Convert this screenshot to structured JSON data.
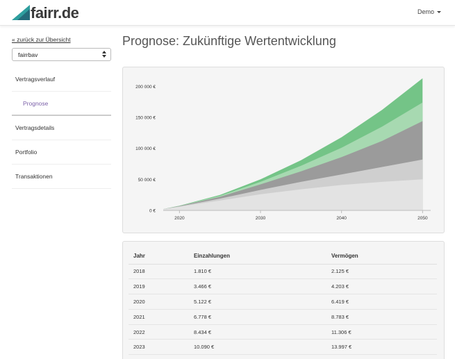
{
  "header": {
    "logo_text": "fairr.de",
    "user_label": "Demo"
  },
  "sidebar": {
    "back_link": "« zurück zur Übersicht",
    "selected_contract": "fairrbav",
    "items": [
      {
        "label": "Vertragsverlauf"
      },
      {
        "label": "Prognose"
      },
      {
        "label": "Vertragsdetails"
      },
      {
        "label": "Portfolio"
      },
      {
        "label": "Transaktionen"
      }
    ]
  },
  "main": {
    "title": "Prognose: Zukünftige Wertentwicklung"
  },
  "chart_data": {
    "type": "area",
    "x": [
      2018,
      2020,
      2025,
      2030,
      2035,
      2040,
      2045,
      2050
    ],
    "xticks": [
      "2020",
      "2030",
      "2040",
      "2050"
    ],
    "yticks": [
      "0 €",
      "50 000 €",
      "100 000 €",
      "150 000 €",
      "200 000 €"
    ],
    "ylim": [
      0,
      215000
    ],
    "xlim": [
      2018,
      2051
    ],
    "series": [
      {
        "values": [
          2125,
          6000,
          16000,
          26000,
          34000,
          41000,
          46000,
          50000
        ],
        "color": "#e3e3e3"
      },
      {
        "values": [
          2125,
          6500,
          19000,
          33000,
          46000,
          58000,
          70000,
          82000
        ],
        "color": "#cfcfcf"
      },
      {
        "values": [
          2125,
          7000,
          22000,
          42000,
          63000,
          86000,
          112000,
          144000
        ],
        "color": "#9b9b9b"
      },
      {
        "values": [
          2125,
          7300,
          23500,
          46000,
          72000,
          101000,
          135000,
          174000
        ],
        "color": "#a7d9b1"
      },
      {
        "values": [
          2125,
          7600,
          25000,
          50000,
          81000,
          118000,
          162000,
          213000
        ],
        "color": "#74c487"
      }
    ],
    "grid": false
  },
  "table": {
    "headers": [
      "Jahr",
      "Einzahlungen",
      "Vermögen"
    ],
    "rows": [
      [
        "2018",
        "1.810 €",
        "2.125 €"
      ],
      [
        "2019",
        "3.466 €",
        "4.203 €"
      ],
      [
        "2020",
        "5.122 €",
        "6.419 €"
      ],
      [
        "2021",
        "6.778 €",
        "8.783 €"
      ],
      [
        "2022",
        "8.434 €",
        "11.306 €"
      ],
      [
        "2023",
        "10.090 €",
        "13.997 €"
      ]
    ]
  }
}
